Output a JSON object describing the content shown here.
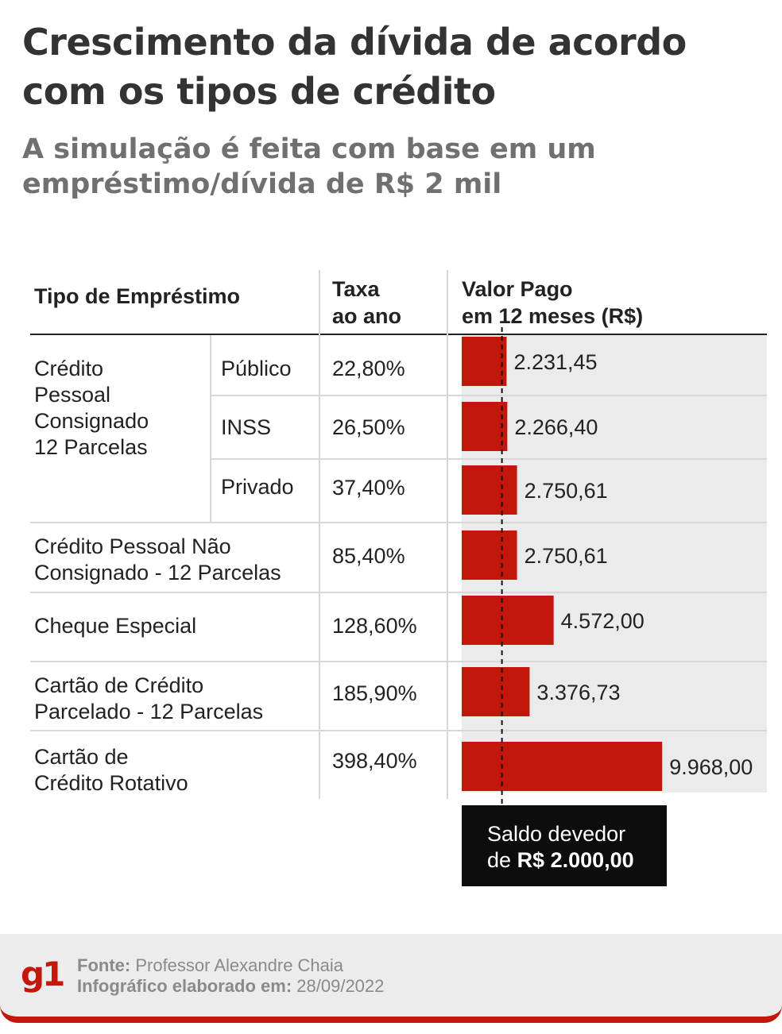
{
  "title": "Crescimento da dívida de acordo com os tipos de crédito",
  "subtitle": "A simulação é feita com base em um empréstimo/dívida de R$ 2 mil",
  "headers": {
    "tipo": "Tipo de Empréstimo",
    "taxa_l1": "Taxa",
    "taxa_l2": "ao ano",
    "valor_l1": "Valor Pago",
    "valor_l2": "em 12 meses (R$)"
  },
  "groups": {
    "consignado_l1": "Crédito",
    "consignado_l2": "Pessoal",
    "consignado_l3": "Consignado",
    "consignado_l4": "12 Parcelas"
  },
  "rows": [
    {
      "type_l1": "Público",
      "type_l2": "",
      "rate": "22,80%",
      "value_label": "2.231,45"
    },
    {
      "type_l1": "INSS",
      "type_l2": "",
      "rate": "26,50%",
      "value_label": "2.266,40"
    },
    {
      "type_l1": "Privado",
      "type_l2": "",
      "rate": "37,40%",
      "value_label": "2.750,61"
    },
    {
      "type_l1": "Crédito Pessoal  Não",
      "type_l2": "Consignado - 12 Parcelas",
      "rate": "85,40%",
      "value_label": "2.750,61"
    },
    {
      "type_l1": "Cheque Especial",
      "type_l2": "",
      "rate": "128,60%",
      "value_label": "4.572,00"
    },
    {
      "type_l1": "Cartão de Crédito",
      "type_l2": "Parcelado - 12 Parcelas",
      "rate": "185,90%",
      "value_label": "3.376,73"
    },
    {
      "type_l1": "Cartão de",
      "type_l2": "Crédito Rotativo",
      "rate": "398,40%",
      "value_label": "9.968,00"
    }
  ],
  "chart_data": {
    "type": "bar",
    "orientation": "horizontal",
    "title": "Valor Pago em 12 meses (R$)",
    "categories": [
      "Crédito Pessoal Consignado 12 Parcelas - Público",
      "Crédito Pessoal Consignado 12 Parcelas - INSS",
      "Crédito Pessoal Consignado 12 Parcelas - Privado",
      "Crédito Pessoal Não Consignado - 12 Parcelas",
      "Cheque Especial",
      "Cartão de Crédito Parcelado - 12 Parcelas",
      "Cartão de Crédito Rotativo"
    ],
    "values": [
      2231.45,
      2266.4,
      2750.61,
      2750.61,
      4572.0,
      3376.73,
      9968.0
    ],
    "value_labels": [
      "2.231,45",
      "2.266,40",
      "2.750,61",
      "2.750,61",
      "4.572,00",
      "3.376,73",
      "9.968,00"
    ],
    "reference_line": {
      "value": 2000,
      "label": "Saldo devedor de R$ 2.000,00"
    },
    "bar_color": "#c4170c",
    "xlim": [
      0,
      10000
    ]
  },
  "callout": {
    "line1": "Saldo devedor",
    "prefix": "de",
    "amount": "R$ 2.000,00"
  },
  "footer": {
    "logo": "g1",
    "source_label": "Fonte:",
    "source_value": "Professor Alexandre Chaia",
    "date_label": "Infográfico elaborado em:",
    "date_value": "28/09/2022"
  }
}
